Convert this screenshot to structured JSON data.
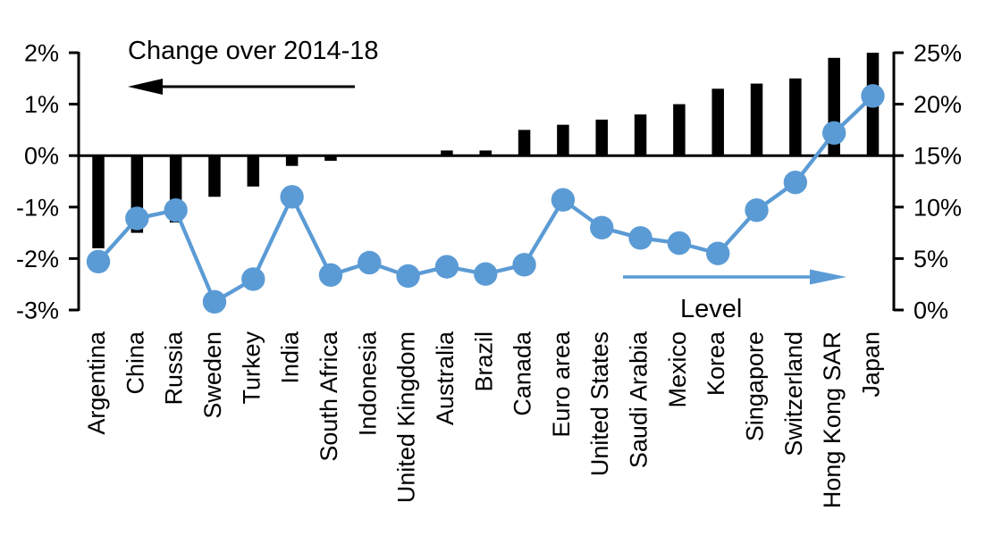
{
  "figure": {
    "left_series_label": "Change over 2014-18",
    "right_series_label": "Level"
  },
  "chart_data": {
    "type": "bar",
    "subtype": "dual-axis bar + line (levels and changes of policy rates by economy)",
    "categories": [
      "Argentina",
      "China",
      "Russia",
      "Sweden",
      "Turkey",
      "India",
      "South Africa",
      "Indonesia",
      "United Kingdom",
      "Australia",
      "Brazil",
      "Canada",
      "Euro area",
      "United States",
      "Saudi Arabia",
      "Mexico",
      "Korea",
      "Singapore",
      "Switzerland",
      "Hong Kong SAR",
      "Japan"
    ],
    "series": [
      {
        "name": "Change over 2014-18",
        "type": "bar",
        "axis": "left",
        "color": "#000000",
        "unit": "%",
        "values": [
          -1.8,
          -1.5,
          -1.3,
          -0.8,
          -0.6,
          -0.2,
          -0.1,
          0,
          0,
          0.1,
          0.1,
          0.5,
          0.6,
          0.7,
          0.8,
          1.0,
          1.3,
          1.4,
          1.5,
          1.9,
          2.0
        ]
      },
      {
        "name": "Level",
        "type": "line",
        "axis": "right",
        "color": "#5B9BD5",
        "unit": "%",
        "values": [
          4.7,
          8.9,
          9.7,
          0.8,
          3.0,
          11.0,
          3.4,
          4.6,
          3.3,
          4.2,
          3.5,
          4.4,
          10.7,
          8.0,
          7.0,
          6.5,
          5.5,
          9.7,
          12.4,
          17.2,
          20.8
        ]
      }
    ],
    "left_axis": {
      "min": -3,
      "max": 2,
      "tick_values": [
        2,
        1,
        0,
        -1,
        -2,
        -3
      ],
      "tick_labels": [
        "2%",
        "1%",
        "0%",
        "-1%",
        "-2%",
        "-3%"
      ]
    },
    "right_axis": {
      "min": 0,
      "max": 25,
      "tick_values": [
        25,
        20,
        15,
        10,
        5,
        0
      ],
      "tick_labels": [
        "25%",
        "20%",
        "15%",
        "10%",
        "5%",
        "0%"
      ]
    },
    "grid": false,
    "legend_position": "annotations inside plot with direction arrows",
    "annotations": [
      {
        "text": "Change over 2014-18",
        "arrow": "left",
        "color": "#000000"
      },
      {
        "text": "Level",
        "arrow": "right",
        "color": "#5B9BD5"
      }
    ]
  }
}
